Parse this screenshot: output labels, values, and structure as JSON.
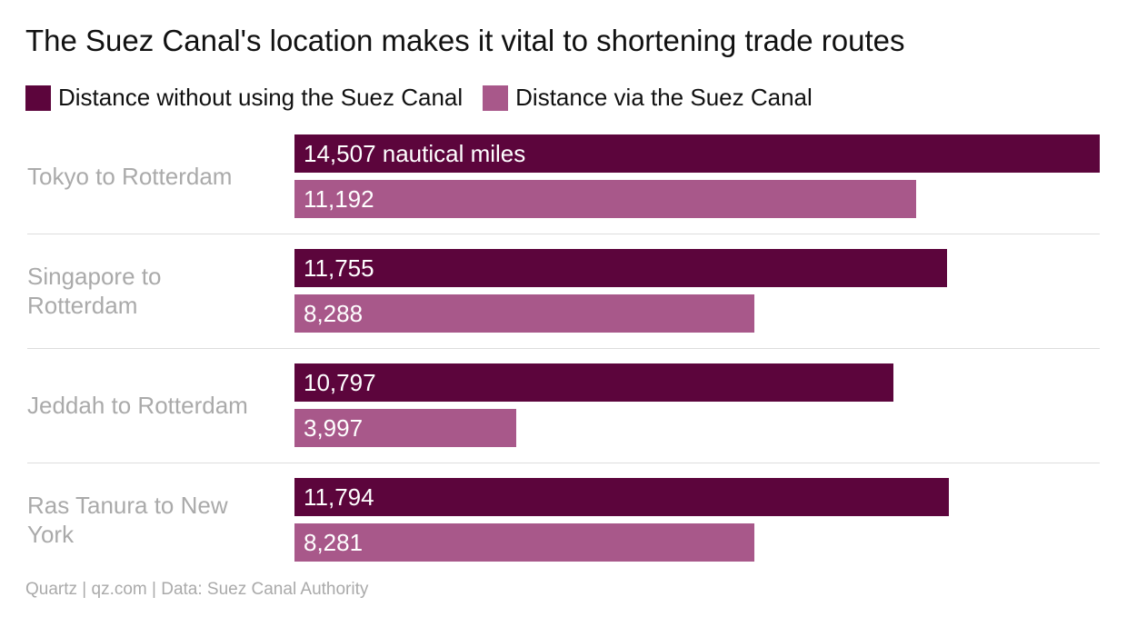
{
  "chart_data": {
    "type": "bar",
    "orientation": "horizontal",
    "title": "The Suez Canal's location makes it vital to shortening trade routes",
    "categories": [
      "Tokyo to Rotterdam",
      "Singapore to Rotterdam",
      "Jeddah to Rotterdam",
      "Ras Tanura to New York"
    ],
    "series": [
      {
        "name": "Distance without using the Suez Canal",
        "color": "#5c053c",
        "values": [
          14507,
          11755,
          10797,
          11794
        ],
        "value_labels": [
          "14,507 nautical miles",
          "11,755",
          "10,797",
          "11,794"
        ]
      },
      {
        "name": "Distance via the Suez Canal",
        "color": "#a8588a",
        "values": [
          11192,
          8288,
          3997,
          8281
        ],
        "value_labels": [
          "11,192",
          "8,288",
          "3,997",
          "8,281"
        ]
      }
    ],
    "source": "Quartz | qz.com | Data: Suez Canal Authority"
  }
}
